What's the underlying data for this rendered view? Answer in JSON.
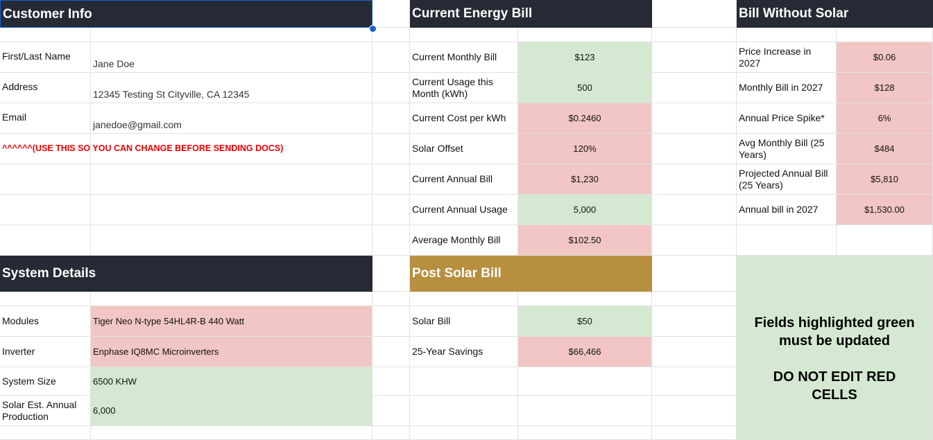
{
  "customer_info": {
    "title": "Customer Info",
    "rows": [
      {
        "label": "First/Last Name",
        "value": "Jane Doe"
      },
      {
        "label": "Address",
        "value": "12345 Testing St Cityville, CA 12345"
      },
      {
        "label": "Email",
        "value": "janedoe@gmail.com"
      }
    ],
    "note": "^^^^^^(USE THIS SO YOU CAN CHANGE BEFORE SENDING DOCS)"
  },
  "current_energy_bill": {
    "title": "Current Energy Bill",
    "rows": [
      {
        "label": "Current Monthly Bill",
        "value": "$123",
        "color": "#d5e8d1"
      },
      {
        "label": "Current Usage this Month (kWh)",
        "value": "500",
        "color": "#d5e8d1"
      },
      {
        "label": "Current Cost per kWh",
        "value": "$0.2460",
        "color": "#f1c6c4"
      },
      {
        "label": "Solar Offset",
        "value": "120%",
        "color": "#f1c6c4"
      },
      {
        "label": "Current Annual Bill",
        "value": "$1,230",
        "color": "#f1c6c4"
      },
      {
        "label": "Current Annual Usage",
        "value": "5,000",
        "color": "#d5e8d1"
      },
      {
        "label": "Average Monthly Bill",
        "value": "$102.50",
        "color": "#f1c6c4"
      }
    ]
  },
  "bill_without_solar": {
    "title": "Bill Without Solar",
    "rows": [
      {
        "label": "Price Increase in 2027",
        "value": "$0.06",
        "color": "#f1c6c4"
      },
      {
        "label": "Monthly Bill in 2027",
        "value": "$128",
        "color": "#f1c6c4"
      },
      {
        "label": "Annual Price Spike*",
        "value": "6%",
        "color": "#f1c6c4"
      },
      {
        "label": "Avg Monthly Bill (25 Years)",
        "value": "$484",
        "color": "#f1c6c4"
      },
      {
        "label": "Projected Annual Bill (25 Years)",
        "value": "$5,810",
        "color": "#f1c6c4"
      },
      {
        "label": "Annual bill in 2027",
        "value": "$1,530.00",
        "color": "#f1c6c4"
      }
    ]
  },
  "system_details": {
    "title": "System Details",
    "rows": [
      {
        "label": "Modules",
        "value": "Tiger Neo N-type 54HL4R-B 440 Watt",
        "color": "#f1c6c4"
      },
      {
        "label": "Inverter",
        "value": "Enphase IQ8MC Microinverters",
        "color": "#f1c6c4"
      },
      {
        "label": "System Size",
        "value": "6500 KHW",
        "color": "#d5e8d1"
      },
      {
        "label": "Solar Est. Annual Production",
        "value": "6,000",
        "color": "#d5e8d1"
      }
    ]
  },
  "post_solar_bill": {
    "title": "Post Solar Bill",
    "rows": [
      {
        "label": "Solar Bill",
        "value": "$50",
        "color": "#d5e8d1"
      },
      {
        "label": "25-Year Savings",
        "value": "$66,466",
        "color": "#f1c6c4"
      }
    ]
  },
  "notice": {
    "line1": "Fields highlighted green must be updated",
    "line2": "DO NOT EDIT RED CELLS"
  }
}
